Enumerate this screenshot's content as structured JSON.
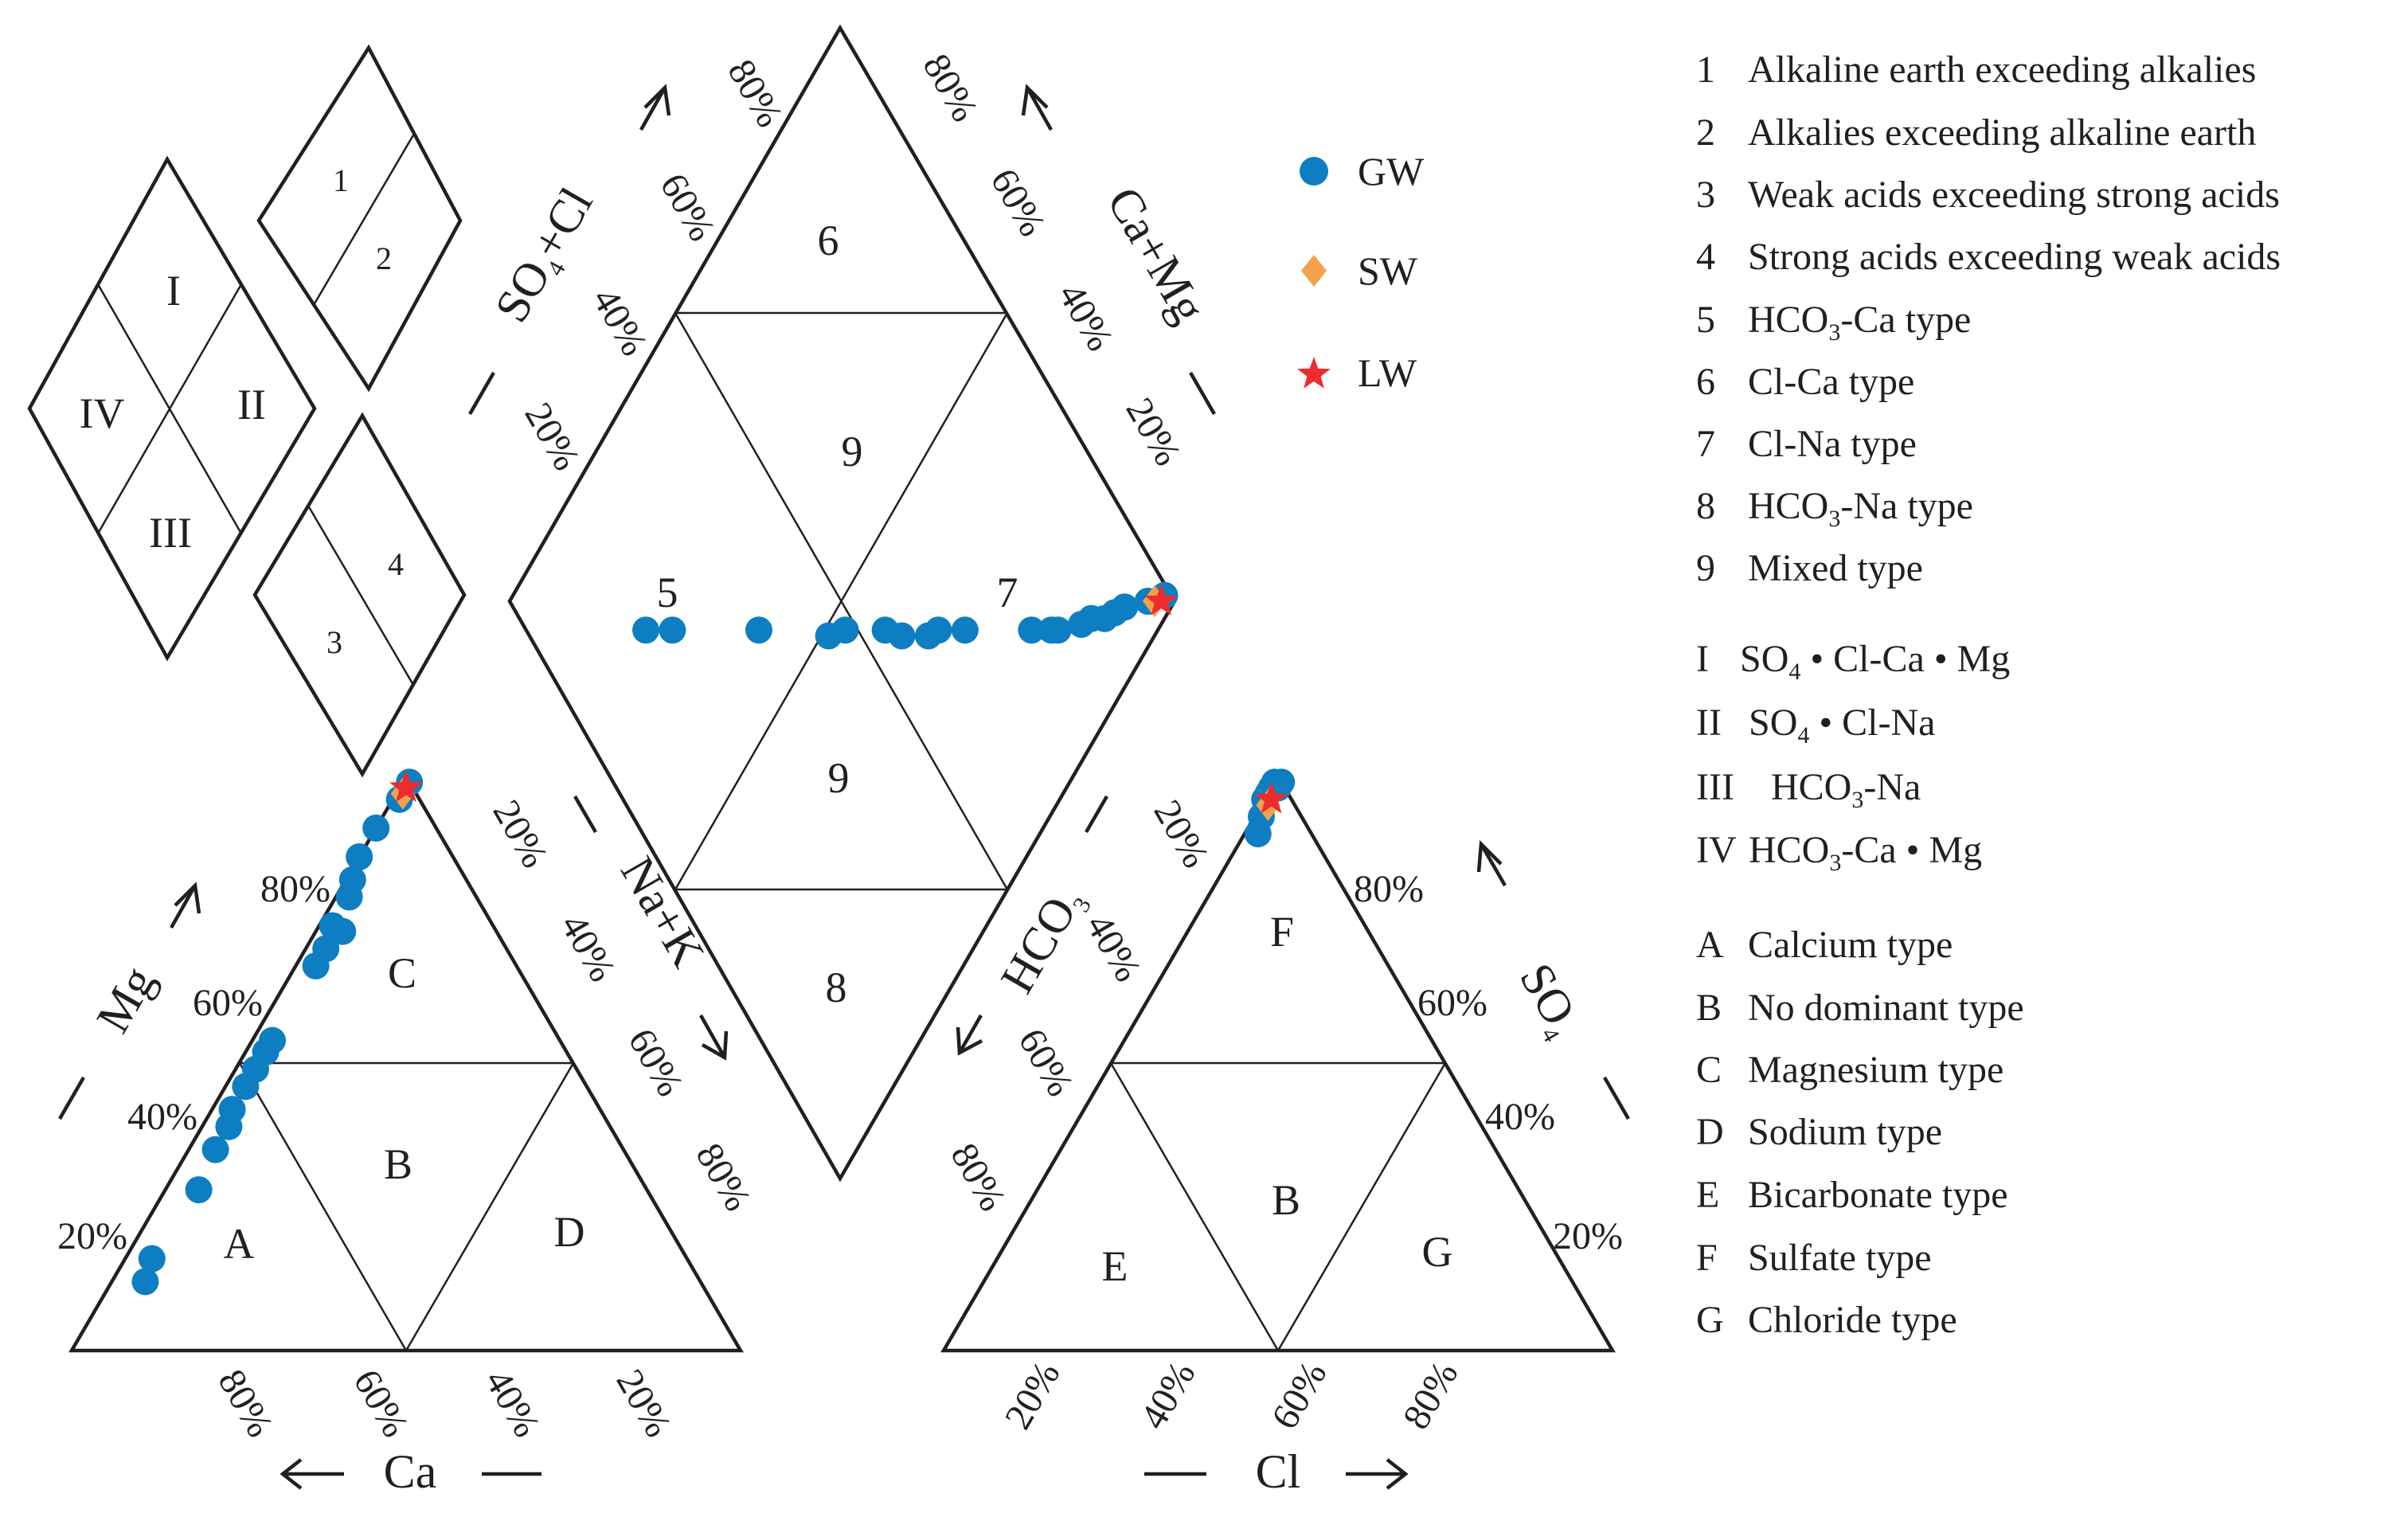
{
  "colors": {
    "line": "#231f20",
    "gw": "#0d7ec1",
    "sw": "#f5a04a",
    "lw": "#ee2b2f"
  },
  "chart_data": {
    "type": "scatter",
    "title": "",
    "series": [
      {
        "name": "GW",
        "cation": [
          [
            1,
            99
          ],
          [
            1,
            96
          ],
          [
            0,
            91
          ],
          [
            0,
            86
          ],
          [
            1,
            82
          ],
          [
            2,
            79
          ],
          [
            2,
            74
          ],
          [
            4,
            73
          ],
          [
            3,
            70
          ],
          [
            3,
            67
          ],
          [
            3,
            54
          ],
          [
            3,
            52
          ],
          [
            3,
            49
          ],
          [
            3,
            46
          ],
          [
            3,
            42
          ],
          [
            4,
            39
          ],
          [
            4,
            35
          ],
          [
            5,
            28
          ],
          [
            4,
            16
          ],
          [
            5,
            12
          ]
        ],
        "anion": [
          [
            2,
            90
          ],
          [
            1,
            93
          ],
          [
            0,
            96
          ],
          [
            0,
            97
          ],
          [
            1,
            98
          ],
          [
            0,
            98
          ],
          [
            1,
            99
          ],
          [
            0,
            99
          ]
        ],
        "diamond": [
          [
            99,
            2
          ],
          [
            96,
            4
          ],
          [
            92,
            7
          ],
          [
            90,
            8
          ],
          [
            88,
            9
          ],
          [
            86,
            11
          ],
          [
            84,
            12
          ],
          [
            80,
            15
          ],
          [
            79,
            16
          ],
          [
            76,
            19
          ],
          [
            66,
            29
          ],
          [
            62,
            33
          ],
          [
            60,
            34
          ],
          [
            56,
            38
          ],
          [
            54,
            41
          ],
          [
            48,
            47
          ],
          [
            45,
            49
          ],
          [
            35,
            60
          ],
          [
            22,
            73
          ],
          [
            18,
            77
          ]
        ]
      },
      {
        "name": "SW",
        "cation": [
          [
            1,
            97
          ]
        ],
        "anion": [
          [
            1,
            95
          ]
        ],
        "diamond": [
          [
            97,
            3
          ]
        ]
      },
      {
        "name": "LW",
        "cation": [
          [
            1,
            98
          ]
        ],
        "anion": [
          [
            1,
            96
          ]
        ],
        "diamond": [
          [
            98,
            2
          ]
        ]
      }
    ]
  },
  "cation_triangle": {
    "axis_ca": "Ca",
    "axis_mg": "Mg",
    "axis_nak": "Na+K",
    "ticks_ca": [
      "80%",
      "60%",
      "40%",
      "20%"
    ],
    "ticks_mg": [
      "80%",
      "60%",
      "40%",
      "20%"
    ],
    "ticks_nak": [
      "20%",
      "40%",
      "60%",
      "80%"
    ],
    "zones": {
      "A": "A",
      "B": "B",
      "C": "C",
      "D": "D"
    }
  },
  "anion_triangle": {
    "axis_cl": "Cl",
    "axis_hco3": "HCO",
    "axis_hco3_sub": "3",
    "axis_so4": "SO",
    "axis_so4_sub": "4",
    "ticks_cl": [
      "20%",
      "40%",
      "60%",
      "80%"
    ],
    "ticks_hco3": [
      "20%",
      "40%",
      "60%",
      "80%"
    ],
    "ticks_so4": [
      "80%",
      "60%",
      "40%",
      "20%"
    ],
    "zones": {
      "E": "E",
      "B": "B",
      "F": "F",
      "G": "G"
    }
  },
  "diamond": {
    "axis_so4cl_a": "SO",
    "axis_so4cl_sub": "4",
    "axis_so4cl_b": "+Cl",
    "axis_camg": "Ca+Mg",
    "ticks_so4cl": [
      "80%",
      "60%",
      "40%",
      "20%"
    ],
    "ticks_camg": [
      "80%",
      "60%",
      "40%",
      "20%"
    ],
    "zones": {
      "z5": "5",
      "z6": "6",
      "z7": "7",
      "z8": "8",
      "z9a": "9",
      "z9b": "9"
    }
  },
  "key_diamonds": {
    "big": {
      "I": "I",
      "II": "II",
      "III": "III",
      "IV": "IV"
    },
    "upper": {
      "n1": "1",
      "n2": "2"
    },
    "lower": {
      "n3": "3",
      "n4": "4"
    }
  },
  "legend": {
    "gw": "GW",
    "sw": "SW",
    "lw": "LW"
  },
  "key": [
    {
      "num": "1",
      "text": "Alkaline earth exceeding alkalies"
    },
    {
      "num": "2",
      "text": "Alkalies exceeding alkaline earth"
    },
    {
      "num": "3",
      "text": "Weak acids exceeding strong acids"
    },
    {
      "num": "4",
      "text": "Strong acids exceeding weak acids"
    },
    {
      "num": "5",
      "pre": "HCO",
      "sub": "3",
      "post": "-Ca type"
    },
    {
      "num": "6",
      "text": "Cl-Ca type"
    },
    {
      "num": "7",
      "text": "Cl-Na type"
    },
    {
      "num": "8",
      "pre": "HCO",
      "sub": "3",
      "post": "-Na type"
    },
    {
      "num": "9",
      "text": "Mixed type"
    },
    {
      "num": "I",
      "pre": "SO",
      "sub": "4",
      "post": " • Cl-Ca • Mg"
    },
    {
      "num": "II",
      "pre": "SO",
      "sub": "4",
      "post": " • Cl-Na"
    },
    {
      "num": "III",
      "pre": "HCO",
      "sub": "3",
      "post": "-Na"
    },
    {
      "num": "IV",
      "pre": "HCO",
      "sub": "3",
      "post": "-Ca • Mg"
    },
    {
      "num": "A",
      "text": "Calcium type"
    },
    {
      "num": "B",
      "text": "No dominant type"
    },
    {
      "num": "C",
      "text": "Magnesium type"
    },
    {
      "num": "D",
      "text": "Sodium type"
    },
    {
      "num": "E",
      "text": "Bicarbonate type"
    },
    {
      "num": "F",
      "text": "Sulfate type"
    },
    {
      "num": "G",
      "text": "Chloride type"
    }
  ]
}
